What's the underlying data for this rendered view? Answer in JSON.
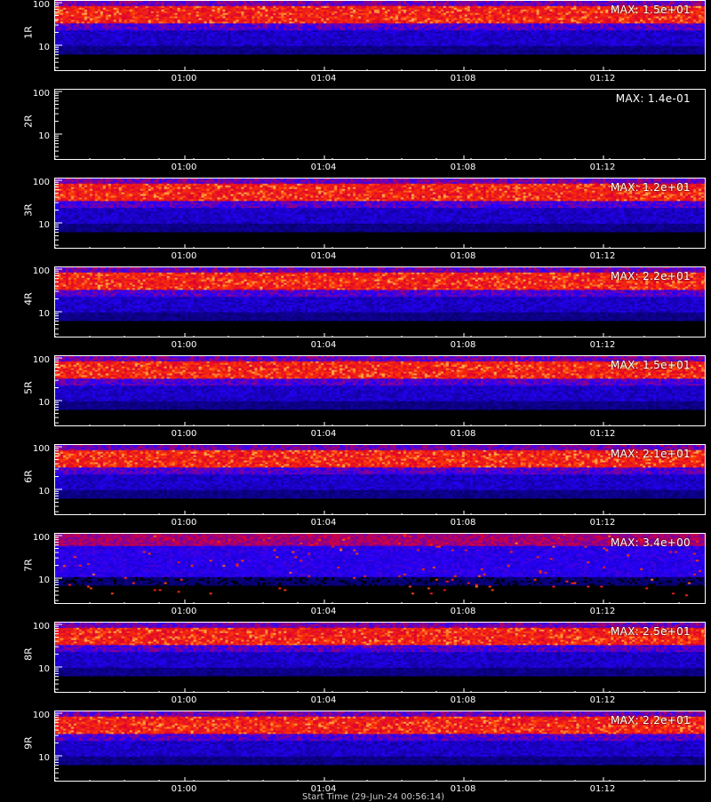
{
  "colors": {
    "background": "#000000",
    "axis": "#ffffff",
    "text": "#ffffff"
  },
  "chart_data": {
    "type": "heatmap",
    "colormap": "black-blue-red-yellow",
    "xtick_labels": [
      "01:00",
      "01:04",
      "01:08",
      "01:12"
    ],
    "yticks": [
      10,
      100
    ],
    "yscale": "log",
    "footer_text": "Start Time (29-Jun-24 00:56:14)",
    "panels": [
      {
        "name": "1R",
        "max_label": "MAX: 1.5e+01",
        "max": 15.0,
        "band": "bright"
      },
      {
        "name": "2R",
        "max_label": "MAX: 1.4e-01",
        "max": 0.14,
        "band": "empty"
      },
      {
        "name": "3R",
        "max_label": "MAX: 1.2e+01",
        "max": 12.0,
        "band": "bright"
      },
      {
        "name": "4R",
        "max_label": "MAX: 2.2e+01",
        "max": 22.0,
        "band": "bright"
      },
      {
        "name": "5R",
        "max_label": "MAX: 1.5e+01",
        "max": 15.0,
        "band": "bright"
      },
      {
        "name": "6R",
        "max_label": "MAX: 2.1e+01",
        "max": 21.0,
        "band": "bright"
      },
      {
        "name": "7R",
        "max_label": "MAX: 3.4e+00",
        "max": 3.4,
        "band": "scattered"
      },
      {
        "name": "8R",
        "max_label": "MAX: 2.5e+01",
        "max": 25.0,
        "band": "bright"
      },
      {
        "name": "9R",
        "max_label": "MAX: 2.2e+01",
        "max": 22.0,
        "band": "bright"
      }
    ]
  }
}
